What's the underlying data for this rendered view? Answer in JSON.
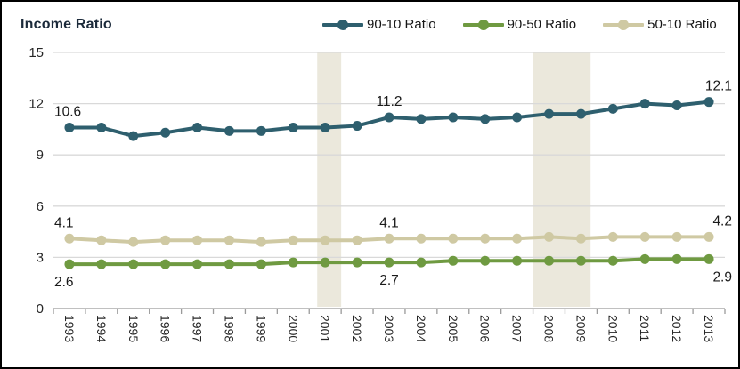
{
  "title": "Income Ratio",
  "legend": {
    "position": "top-right",
    "entries": [
      "90-10 Ratio",
      "90-50 Ratio",
      "50-10 Ratio"
    ]
  },
  "colors": {
    "series_90_10": "#2e5f6e",
    "series_90_50": "#6f9a41",
    "series_50_10": "#cfc9a3",
    "recession_band": "#ebe8dc",
    "gridline": "#d9d9d9",
    "axis": "#9a9a9a",
    "label_text": "#1a1a1a"
  },
  "chart_data": {
    "type": "line",
    "title": "Income Ratio",
    "x": [
      1993,
      1994,
      1995,
      1996,
      1997,
      1998,
      1999,
      2000,
      2001,
      2002,
      2003,
      2004,
      2005,
      2006,
      2007,
      2008,
      2009,
      2010,
      2011,
      2012,
      2013
    ],
    "xlabel": "",
    "ylabel": "Income Ratio",
    "ylim": [
      0,
      15
    ],
    "yticks": [
      0,
      3,
      6,
      9,
      12,
      15
    ],
    "grid": "horizontal",
    "legend_position": "top-right",
    "series": [
      {
        "name": "90-10 Ratio",
        "color": "#2e5f6e",
        "values": [
          10.6,
          10.6,
          10.1,
          10.3,
          10.6,
          10.4,
          10.4,
          10.6,
          10.6,
          10.7,
          11.2,
          11.1,
          11.2,
          11.1,
          11.2,
          11.4,
          11.4,
          11.7,
          12.0,
          11.9,
          12.1
        ]
      },
      {
        "name": "90-50 Ratio",
        "color": "#6f9a41",
        "values": [
          2.6,
          2.6,
          2.6,
          2.6,
          2.6,
          2.6,
          2.6,
          2.7,
          2.7,
          2.7,
          2.7,
          2.7,
          2.8,
          2.8,
          2.8,
          2.8,
          2.8,
          2.8,
          2.9,
          2.9,
          2.9
        ]
      },
      {
        "name": "50-10 Ratio",
        "color": "#cfc9a3",
        "values": [
          4.1,
          4.0,
          3.9,
          4.0,
          4.0,
          4.0,
          3.9,
          4.0,
          4.0,
          4.0,
          4.1,
          4.1,
          4.1,
          4.1,
          4.1,
          4.2,
          4.1,
          4.2,
          4.2,
          4.2,
          4.2
        ]
      }
    ],
    "shaded_bands": [
      {
        "from": 2000.75,
        "to": 2001.5
      },
      {
        "from": 2007.5,
        "to": 2009.3
      }
    ],
    "band_color": "#ebe8dc",
    "point_labels": [
      {
        "series": "90-10 Ratio",
        "year": 1993,
        "text": "10.6",
        "placement": "above"
      },
      {
        "series": "90-10 Ratio",
        "year": 2003,
        "text": "11.2",
        "placement": "above"
      },
      {
        "series": "90-10 Ratio",
        "year": 2013,
        "text": "12.1",
        "placement": "above"
      },
      {
        "series": "50-10 Ratio",
        "year": 1993,
        "text": "4.1",
        "placement": "above"
      },
      {
        "series": "50-10 Ratio",
        "year": 2003,
        "text": "4.1",
        "placement": "above"
      },
      {
        "series": "50-10 Ratio",
        "year": 2013,
        "text": "4.2",
        "placement": "above"
      },
      {
        "series": "90-50 Ratio",
        "year": 1993,
        "text": "2.6",
        "placement": "below"
      },
      {
        "series": "90-50 Ratio",
        "year": 2003,
        "text": "2.7",
        "placement": "below"
      },
      {
        "series": "90-50 Ratio",
        "year": 2013,
        "text": "2.9",
        "placement": "below"
      }
    ]
  }
}
